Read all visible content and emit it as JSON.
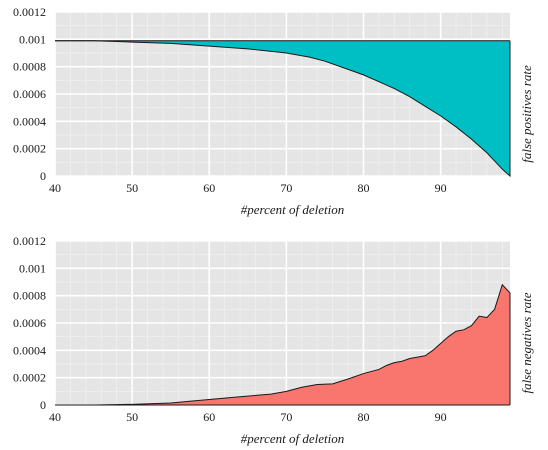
{
  "chart_data": [
    {
      "type": "area",
      "title": "",
      "xlabel": "#percent of deletion",
      "ylabel": "false positives rate",
      "xlim": [
        40,
        99
      ],
      "ylim": [
        0,
        0.0012
      ],
      "xticks": [
        40,
        50,
        60,
        70,
        80,
        90
      ],
      "yticks": [
        "0",
        "0.0002",
        "0.0004",
        "0.0006",
        "0.0008",
        "0.001",
        "0.0012"
      ],
      "grid": true,
      "baseline": 0.00099,
      "fill_color": "#00bfc4",
      "x": [
        40,
        45,
        50,
        55,
        60,
        65,
        70,
        73,
        75,
        78,
        80,
        82,
        84,
        86,
        88,
        90,
        92,
        94,
        96,
        97,
        98,
        99
      ],
      "values": [
        0.00099,
        0.00099,
        0.00098,
        0.00097,
        0.00095,
        0.00093,
        0.0009,
        0.00087,
        0.00084,
        0.00078,
        0.00074,
        0.00069,
        0.00064,
        0.00058,
        0.00051,
        0.00044,
        0.00036,
        0.00027,
        0.00017,
        0.00011,
        5e-05,
        0.0
      ]
    },
    {
      "type": "area",
      "title": "",
      "xlabel": "#percent of deletion",
      "ylabel": "false negatives rate",
      "xlim": [
        40,
        99
      ],
      "ylim": [
        0,
        0.0012
      ],
      "xticks": [
        40,
        50,
        60,
        70,
        80,
        90
      ],
      "yticks": [
        "0",
        "0.0002",
        "0.0004",
        "0.0006",
        "0.0008",
        "0.001",
        "0.0012"
      ],
      "grid": true,
      "baseline": 0,
      "fill_color": "#f8766d",
      "x": [
        40,
        45,
        50,
        55,
        58,
        60,
        62,
        64,
        66,
        68,
        70,
        72,
        74,
        76,
        78,
        80,
        82,
        83,
        84,
        85,
        86,
        87,
        88,
        89,
        90,
        91,
        92,
        93,
        94,
        95,
        96,
        97,
        98,
        99
      ],
      "values": [
        0.0,
        0.0,
        5e-06,
        1.5e-05,
        3e-05,
        4e-05,
        5e-05,
        6e-05,
        7e-05,
        8e-05,
        0.0001,
        0.00013,
        0.00015,
        0.000155,
        0.00019,
        0.00023,
        0.00026,
        0.00029,
        0.00031,
        0.00032,
        0.00034,
        0.00035,
        0.00036,
        0.0004,
        0.00045,
        0.0005,
        0.00054,
        0.00055,
        0.00058,
        0.00065,
        0.00064,
        0.0007,
        0.00088,
        0.00082
      ]
    }
  ]
}
